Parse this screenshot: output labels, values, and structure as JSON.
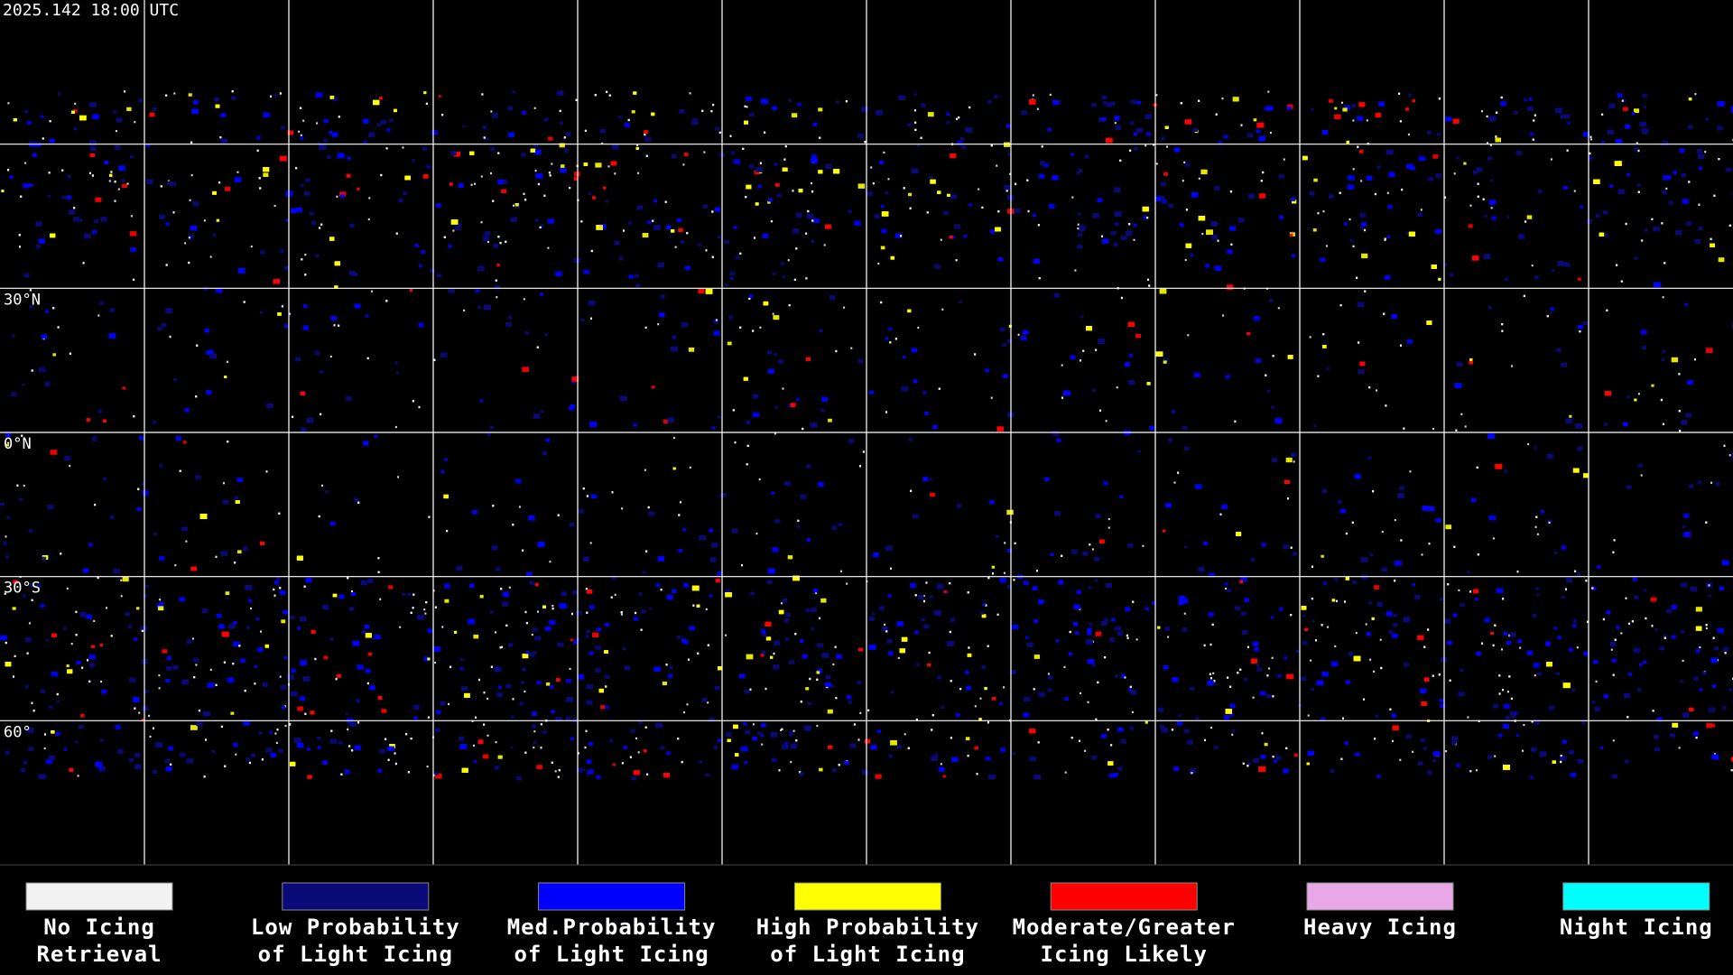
{
  "header": {
    "timestamp": "2025.142 18:00 UTC"
  },
  "map": {
    "latitude_labels": [
      "30°N",
      "0°N",
      "30°S",
      "60°"
    ]
  },
  "legend": {
    "items": [
      {
        "color": "#f2f2f2",
        "label": [
          "No Icing",
          "Retrieval"
        ]
      },
      {
        "color": "#0a0a78",
        "label": [
          "Low Probability",
          "of Light Icing"
        ]
      },
      {
        "color": "#0000ff",
        "label": [
          "Med.Probability",
          "of Light Icing"
        ]
      },
      {
        "color": "#ffff00",
        "label": [
          "High Probability",
          "of Light Icing"
        ]
      },
      {
        "color": "#ff0000",
        "label": [
          "Moderate/Greater",
          "Icing Likely"
        ]
      },
      {
        "color": "#e8a8e8",
        "label": [
          "Heavy Icing"
        ]
      },
      {
        "color": "#00ffff",
        "label": [
          "Night Icing"
        ]
      }
    ]
  }
}
